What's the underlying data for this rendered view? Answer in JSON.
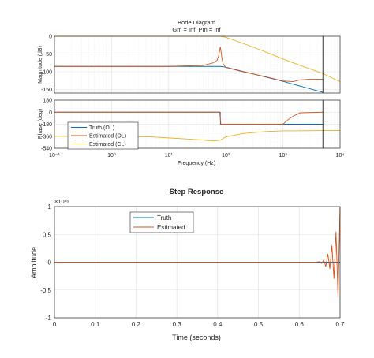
{
  "colors": {
    "truth": "#0072BD",
    "estimated": "#D95319",
    "estimated_cl": "#EDB120",
    "grid": "#DFDFDF",
    "axis": "#262626",
    "marker_line": "#000000"
  },
  "chart_data": [
    {
      "type": "line",
      "title": "Bode Diagram",
      "subtitle": "Gm = Inf,  Pm = Inf",
      "xlabel": "Frequency  (Hz)",
      "xscale": "log",
      "xlim": [
        0.1,
        10000
      ],
      "x_tick_labels": [
        "10⁻¹",
        "10⁰",
        "10¹",
        "10²",
        "10³",
        "10⁴"
      ],
      "vertical_marker_x": 5000,
      "grid": true,
      "legend": {
        "location": "lower-left of phase panel",
        "entries": [
          "Truth (OL)",
          "Estimated (OL)",
          "Estimated (CL)"
        ]
      },
      "panels": [
        {
          "name": "magnitude",
          "ylabel": "Magnitude (dB)",
          "ylim": [
            -160,
            0
          ],
          "yticks": [
            0,
            -50,
            -100,
            -150
          ],
          "series": [
            {
              "name": "Truth (OL)",
              "x": [
                0.1,
                1,
                10,
                80,
                100,
                1000,
                5000
              ],
              "y": [
                -85,
                -85,
                -85,
                -85,
                -87,
                -127,
                -158
              ]
            },
            {
              "name": "Estimated (OL)",
              "x": [
                0.1,
                1,
                10,
                40,
                60,
                70,
                75,
                78,
                80,
                82,
                85,
                90,
                100,
                200,
                500,
                1000,
                1500,
                2000,
                3000,
                5000
              ],
              "y": [
                -85,
                -85,
                -85,
                -82,
                -75,
                -68,
                -55,
                -40,
                -30,
                -40,
                -60,
                -78,
                -88,
                -100,
                -114,
                -126,
                -128,
                -123,
                -121,
                -121
              ]
            },
            {
              "name": "Estimated (CL)",
              "x": [
                0.1,
                1,
                10,
                50,
                80,
                100,
                200,
                500,
                1000,
                2000,
                5000,
                10000
              ],
              "y": [
                0,
                0,
                0,
                0,
                0,
                -3,
                -20,
                -44,
                -64,
                -82,
                -105,
                -128
              ]
            }
          ]
        },
        {
          "name": "phase",
          "ylabel": "Phase (deg)",
          "ylim": [
            -540,
            180
          ],
          "yticks": [
            180,
            0,
            -180,
            -360,
            -540
          ],
          "series": [
            {
              "name": "Truth (OL)",
              "x": [
                0.1,
                10,
                80,
                80.5,
                1000,
                5000
              ],
              "y": [
                0,
                0,
                0,
                -180,
                -180,
                -180
              ]
            },
            {
              "name": "Estimated (OL)",
              "x": [
                0.1,
                10,
                78,
                80,
                82,
                1000,
                1200,
                1500,
                2000,
                5000
              ],
              "y": [
                0,
                0,
                0,
                -90,
                -180,
                -180,
                -120,
                -60,
                -10,
                0
              ]
            },
            {
              "name": "Estimated (CL)",
              "x": [
                0.1,
                1,
                5,
                10,
                20,
                40,
                60,
                80,
                100,
                200,
                500,
                1000,
                2000,
                5000,
                10000
              ],
              "y": [
                -360,
                -362,
                -370,
                -385,
                -400,
                -418,
                -430,
                -420,
                -370,
                -320,
                -290,
                -280,
                -278,
                -275,
                -275
              ]
            }
          ]
        }
      ]
    },
    {
      "type": "line",
      "title": "Step Response",
      "xlabel": "Time (seconds)",
      "ylabel": "Amplitude",
      "y_exponent_label": "×10²⁶",
      "xlim": [
        0,
        0.7
      ],
      "ylim": [
        -1,
        1
      ],
      "xticks": [
        0,
        0.1,
        0.2,
        0.3,
        0.4,
        0.5,
        0.6,
        0.7
      ],
      "yticks": [
        -1,
        -0.5,
        0,
        0.5,
        1
      ],
      "grid": true,
      "legend": {
        "location": "upper-center",
        "entries": [
          "Truth",
          "Estimated"
        ]
      },
      "series": [
        {
          "name": "Truth",
          "x": [
            0,
            0.7
          ],
          "y": [
            0,
            0
          ]
        },
        {
          "name": "Estimated",
          "x": [
            0,
            0.64,
            0.65,
            0.655,
            0.66,
            0.665,
            0.67,
            0.675,
            0.68,
            0.685,
            0.69,
            0.695,
            0.7
          ],
          "y": [
            0,
            0,
            0.01,
            -0.02,
            0.04,
            -0.08,
            0.15,
            -0.12,
            0.3,
            -0.3,
            0.55,
            -0.62,
            1.0
          ]
        }
      ]
    }
  ]
}
